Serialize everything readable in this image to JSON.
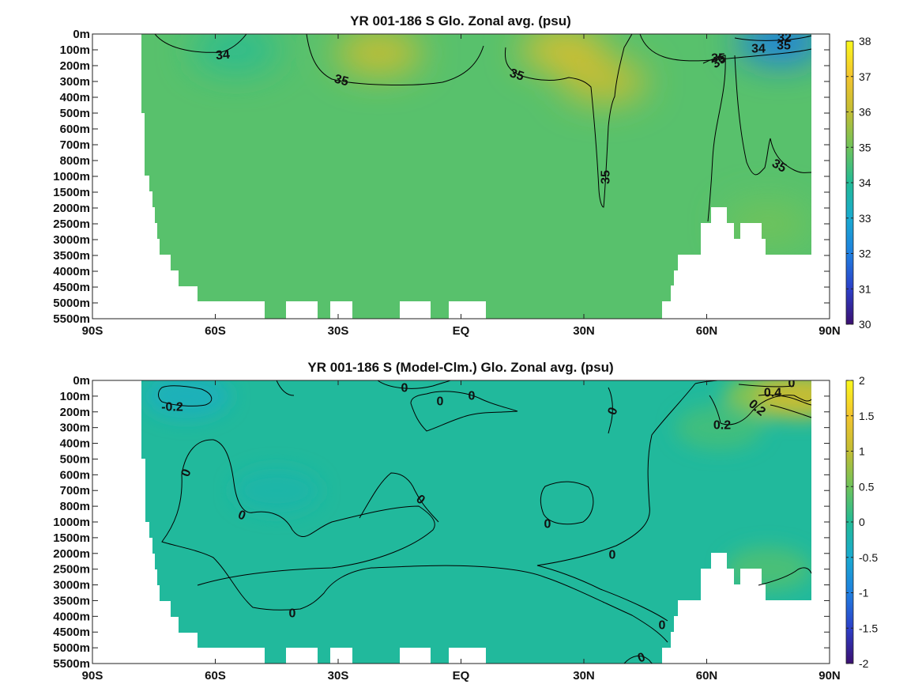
{
  "chart_data": [
    {
      "type": "heatmap",
      "title": "YR 001-186 S Glo. Zonal avg. (psu)",
      "x_ticks": [
        "90S",
        "60S",
        "30S",
        "EQ",
        "30N",
        "60N",
        "90N"
      ],
      "x_tick_values": [
        -90,
        -60,
        -30,
        0,
        30,
        60,
        90
      ],
      "y_ticks": [
        "0m",
        "100m",
        "200m",
        "300m",
        "400m",
        "500m",
        "600m",
        "700m",
        "800m",
        "1000m",
        "1500m",
        "2000m",
        "2500m",
        "3000m",
        "3500m",
        "4000m",
        "4500m",
        "5000m",
        "5500m"
      ],
      "colorbar": {
        "ticks": [
          "30",
          "31",
          "32",
          "33",
          "34",
          "35",
          "36",
          "37",
          "38"
        ],
        "min": 30,
        "max": 38,
        "colormap": [
          "#3b0f70",
          "#2c3fc8",
          "#1f7fe0",
          "#19aad0",
          "#22bb96",
          "#6fc35a",
          "#c2bd34",
          "#f3c42e",
          "#f9f81c"
        ]
      },
      "background_value": 34.7,
      "contour_labels": [
        "34",
        "35",
        "35",
        "35",
        "35",
        "35",
        "34",
        "32",
        "35",
        "35"
      ],
      "salinity_features": [
        {
          "lat": -20,
          "depth_level": 1.2,
          "value": 36.1
        },
        {
          "lat": 25,
          "depth_level": 1.0,
          "value": 36.3
        },
        {
          "lat": 35,
          "depth_level": 3.0,
          "value": 36.0
        },
        {
          "lat": -55,
          "depth_level": 1.0,
          "value": 34.1
        },
        {
          "lat": 78,
          "depth_level": 0.5,
          "value": 32.0
        },
        {
          "lat": 75,
          "depth_level": 12.0,
          "value": 35.0
        }
      ]
    },
    {
      "type": "heatmap",
      "title": "YR 001-186 S (Model-Clm.) Glo. Zonal avg. (psu)",
      "x_ticks": [
        "90S",
        "60S",
        "30S",
        "EQ",
        "30N",
        "60N",
        "90N"
      ],
      "x_tick_values": [
        -90,
        -60,
        -30,
        0,
        30,
        60,
        90
      ],
      "y_ticks": [
        "0m",
        "100m",
        "200m",
        "300m",
        "400m",
        "500m",
        "600m",
        "700m",
        "800m",
        "1000m",
        "1500m",
        "2000m",
        "2500m",
        "3000m",
        "3500m",
        "4000m",
        "4500m",
        "5000m",
        "5500m"
      ],
      "colorbar": {
        "ticks": [
          "2",
          "1.5",
          "1",
          "0.5",
          "0",
          "-0.5",
          "-1",
          "-1.5",
          "-2"
        ],
        "min": -2,
        "max": 2,
        "colormap": [
          "#3b0f70",
          "#2c3fc8",
          "#1f7fe0",
          "#19aad0",
          "#22bb96",
          "#6fc35a",
          "#c2bd34",
          "#f3c42e",
          "#f9f81c"
        ]
      },
      "background_value": -0.05,
      "contour_labels": [
        "-0.2",
        "0",
        "0",
        "0",
        "0",
        "0",
        "0",
        "0",
        "0",
        "0",
        "0",
        "0",
        "0",
        "0.2",
        "0.2",
        "0.4",
        "0"
      ],
      "salinity_features": [
        {
          "lat": -67,
          "depth_level": 1.0,
          "value": -0.3
        },
        {
          "lat": -45,
          "depth_level": 7.0,
          "value": -0.15
        },
        {
          "lat": 75,
          "depth_level": 1.0,
          "value": 0.6
        },
        {
          "lat": 83,
          "depth_level": 1.0,
          "value": 1.0
        },
        {
          "lat": 75,
          "depth_level": 12.0,
          "value": 0.25
        },
        {
          "lat": 63,
          "depth_level": 3.0,
          "value": 0.2
        }
      ]
    }
  ]
}
